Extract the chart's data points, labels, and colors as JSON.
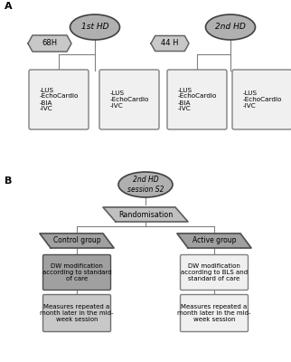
{
  "background_color": "#ffffff",
  "panel_A_label": "A",
  "panel_B_label": "B",
  "ellipse_color": "#b0b0b0",
  "ellipse_edge_color": "#404040",
  "ellipse_1st_text": "1st HD",
  "ellipse_2nd_text": "2nd HD",
  "hex_68H_text": "68H",
  "hex_44H_text": "44 H",
  "hex_color": "#c8c8c8",
  "hex_edge_color": "#606060",
  "box_color": "#f0f0f0",
  "box_edge_color": "#808080",
  "box1_lines": [
    "-LUS",
    "-EchoCardio",
    "-BIA",
    "-IVC"
  ],
  "box2_lines": [
    "-LUS",
    "-EchoCardio",
    "-IVC"
  ],
  "box3_lines": [
    "-LUS",
    "-EchoCardio",
    "-BIA",
    "-IVC"
  ],
  "box4_lines": [
    "-LUS",
    "-EchoCardio",
    "-IVC"
  ],
  "ellipse_B_text": "2nd HD\nsession S2",
  "rand_text": "Randomisation",
  "rand_color": "#c0c0c0",
  "rand_edge_color": "#606060",
  "ctrl_text": "Control group",
  "active_text": "Active group",
  "group_color": "#a0a0a0",
  "group_edge_color": "#505050",
  "dw_ctrl_text": "DW modification\naccording to standard\nof care",
  "dw_ctrl_color": "#a0a0a0",
  "dw_ctrl_edge_color": "#505050",
  "dw_active_text": "DW modification\naccording to BLS and\nstandard of care",
  "dw_active_color": "#f0f0f0",
  "dw_active_edge_color": "#808080",
  "meas_ctrl_text": "Measures repeated a\nmonth later in the mid-\nweek session",
  "meas_ctrl_color": "#c8c8c8",
  "meas_ctrl_edge_color": "#707070",
  "meas_active_text": "Measures repeated a\nmonth later in the mid-\nweek session",
  "meas_active_color": "#f0f0f0",
  "meas_active_edge_color": "#808080",
  "line_color": "#808080"
}
